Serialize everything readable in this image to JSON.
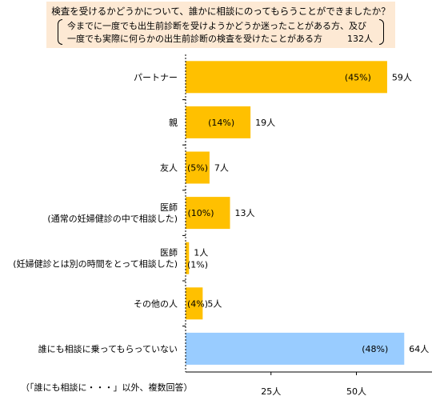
{
  "header": {
    "title": "検査を受けるかどうかについて、誰かに相談にのってもらうことができましたか？",
    "condition_line1": "今までに一度でも出生前診断を受けようかどうか迷ったことがある方、及び",
    "condition_line2": "一度でも実際に何らかの出生前診断の検査を受けたことがある方",
    "n": "132人"
  },
  "footnote": "（「誰にも相談に・・・」以外、複数回答）",
  "colors": {
    "primary": "#ffc000",
    "highlight": "#99ccff",
    "header_bg": "#fde9d4"
  },
  "chart_data": {
    "type": "bar",
    "orientation": "horizontal",
    "categories": [
      [
        "パートナー"
      ],
      [
        "親"
      ],
      [
        "友人"
      ],
      [
        "医師",
        "(通常の妊婦健診の中で相談した)"
      ],
      [
        "医師",
        "(妊婦健診とは別の時間をとって相談した)"
      ],
      [
        "その他の人"
      ],
      [
        "誰にも相談に乗ってもらっていない"
      ]
    ],
    "values": [
      59,
      19,
      7,
      13,
      1,
      5,
      64
    ],
    "percent_labels": [
      "(45%)",
      "(14%)",
      "(5%)",
      "(10%)",
      "(1%)",
      "(4%)",
      "(48%)"
    ],
    "value_labels": [
      "59人",
      "19人",
      "7人",
      "13人",
      "1人",
      "5人",
      "64人"
    ],
    "bar_colors": [
      "#ffc000",
      "#ffc000",
      "#ffc000",
      "#ffc000",
      "#ffc000",
      "#ffc000",
      "#99ccff"
    ],
    "xticks": [
      25,
      50
    ],
    "xtick_labels": [
      "25人",
      "50人"
    ],
    "xlim": [
      0,
      70
    ],
    "grid": false
  }
}
